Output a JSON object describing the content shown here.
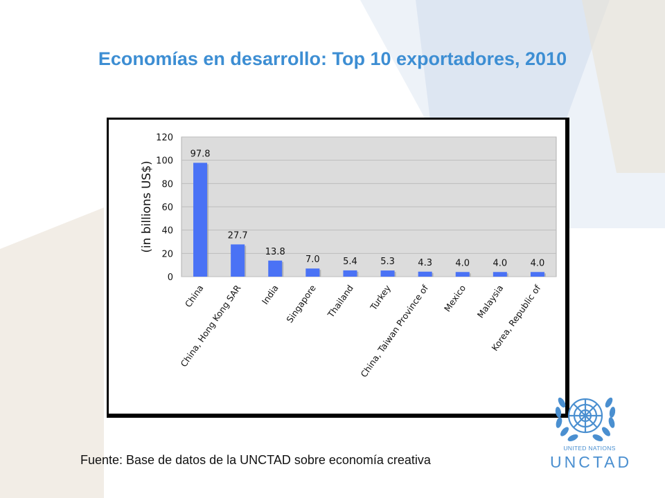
{
  "slide": {
    "title": "Economías en desarrollo: Top 10 exportadores, 2010",
    "source": "Fuente: Base de datos de la UNCTAD sobre economía creativa"
  },
  "logo": {
    "name": "UNITED NATIONS",
    "acronym": "UNCTAD",
    "icon": "un-emblem-icon"
  },
  "colors": {
    "title": "#3d8ed3",
    "bar": "#4a72f5",
    "plot_bg": "#dcdcdc",
    "logo": "#4a8fd0"
  },
  "chart_data": {
    "type": "bar",
    "title": "",
    "xlabel": "",
    "ylabel": "(in billions US$)",
    "ylim": [
      0,
      120
    ],
    "yticks": [
      0,
      20,
      40,
      60,
      80,
      100,
      120
    ],
    "grid": true,
    "legend": "none",
    "categories": [
      "China",
      "China, Hong Kong SAR",
      "India",
      "Singapore",
      "Thailand",
      "Turkey",
      "China, Taiwan Province of",
      "Mexico",
      "Malaysia",
      "Korea, Republic of"
    ],
    "values": [
      97.8,
      27.7,
      13.8,
      7.0,
      5.4,
      5.3,
      4.3,
      4.0,
      4.0,
      4.0
    ],
    "value_labels": [
      "97.8",
      "27.7",
      "13.8",
      "7.0",
      "5.4",
      "5.3",
      "4.3",
      "4.0",
      "4.0",
      "4.0"
    ]
  }
}
